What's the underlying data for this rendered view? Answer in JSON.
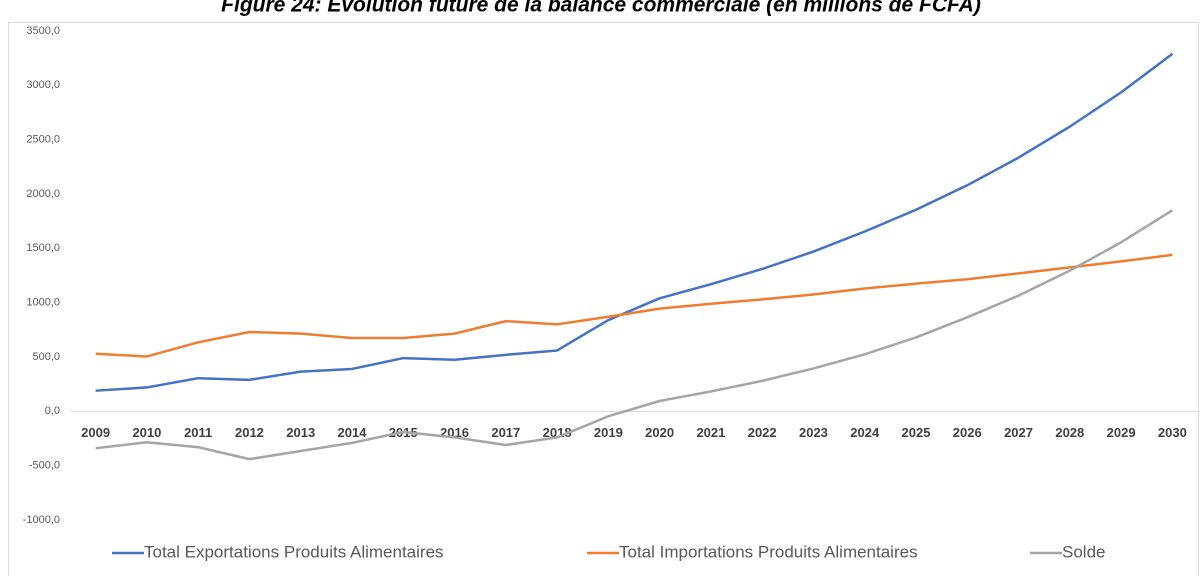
{
  "chart_data": {
    "type": "line",
    "title": "Figure 24: Evolution future de la balance commerciale (en millions de FCFA)",
    "categories": [
      "2009",
      "2010",
      "2011",
      "2012",
      "2013",
      "2014",
      "2015",
      "2016",
      "2017",
      "2018",
      "2019",
      "2020",
      "2021",
      "2022",
      "2023",
      "2024",
      "2025",
      "2026",
      "2027",
      "2028",
      "2029",
      "2030"
    ],
    "series": [
      {
        "name": "Total Exportations Produits Alimentaires",
        "color": "#4472c4",
        "values": [
          190,
          220,
          305,
          290,
          365,
          390,
          490,
          475,
          520,
          560,
          840,
          1040,
          1170,
          1310,
          1470,
          1655,
          1855,
          2080,
          2335,
          2620,
          2935,
          3290
        ]
      },
      {
        "name": "Total Importations Produits Alimentaires",
        "color": "#ed7d31",
        "values": [
          530,
          505,
          635,
          730,
          715,
          675,
          675,
          715,
          830,
          800,
          870,
          945,
          990,
          1030,
          1075,
          1130,
          1175,
          1215,
          1270,
          1325,
          1380,
          1440
        ]
      },
      {
        "name": "Solde",
        "color": "#a5a5a5",
        "values": [
          -340,
          -285,
          -330,
          -440,
          -365,
          -290,
          -190,
          -240,
          -310,
          -240,
          -45,
          95,
          183,
          280,
          395,
          525,
          680,
          865,
          1065,
          1295,
          1555,
          1850
        ]
      }
    ],
    "ylim": [
      -1000,
      3500
    ],
    "yticks": [
      {
        "value": -1000,
        "label": "-1000,0"
      },
      {
        "value": -500,
        "label": "-500,0"
      },
      {
        "value": 0,
        "label": "0,0"
      },
      {
        "value": 500,
        "label": "500,0"
      },
      {
        "value": 1000,
        "label": "1000,0"
      },
      {
        "value": 1500,
        "label": "1500,0"
      },
      {
        "value": 2000,
        "label": "2000,0"
      },
      {
        "value": 2500,
        "label": "2500,0"
      },
      {
        "value": 3000,
        "label": "3000,0"
      },
      {
        "value": 3500,
        "label": "3500,0"
      }
    ],
    "grid": false,
    "legend": "bottom"
  }
}
